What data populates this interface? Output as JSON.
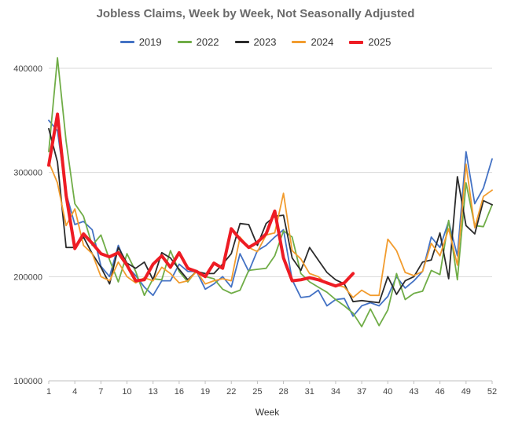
{
  "chart_data": {
    "type": "line",
    "title": "Jobless Claims, Week by Week, Not Seasonally Adjusted",
    "xlabel": "Week",
    "ylabel": "",
    "xlim": [
      1,
      52
    ],
    "ylim": [
      100000,
      400000
    ],
    "yticks": [
      100000,
      200000,
      300000,
      400000
    ],
    "ytick_labels": [
      "100000",
      "200000",
      "300000",
      "400000"
    ],
    "xticks": [
      1,
      4,
      7,
      10,
      13,
      16,
      19,
      22,
      25,
      28,
      31,
      34,
      37,
      40,
      43,
      46,
      49,
      52
    ],
    "xtick_labels": [
      "1",
      "4",
      "7",
      "10",
      "13",
      "16",
      "19",
      "22",
      "25",
      "28",
      "31",
      "34",
      "37",
      "40",
      "43",
      "46",
      "49",
      "52"
    ],
    "grid": "horizontal",
    "legend_position": "top",
    "series": [
      {
        "name": "2019",
        "color": "#4472C4",
        "width": 1.8,
        "x": [
          1,
          2,
          3,
          4,
          5,
          6,
          7,
          8,
          9,
          10,
          11,
          12,
          13,
          14,
          15,
          16,
          17,
          18,
          19,
          20,
          21,
          22,
          23,
          24,
          25,
          26,
          27,
          28,
          29,
          30,
          31,
          32,
          33,
          34,
          35,
          36,
          37,
          38,
          39,
          40,
          41,
          42,
          43,
          44,
          45,
          46,
          47,
          48,
          49,
          50,
          51,
          52
        ],
        "values": [
          350000,
          340000,
          280000,
          250000,
          253000,
          245000,
          210000,
          200000,
          230000,
          210000,
          201000,
          190000,
          182000,
          196000,
          196000,
          212000,
          205000,
          205000,
          188000,
          193000,
          200000,
          190000,
          222000,
          205000,
          225000,
          230000,
          238000,
          245000,
          197000,
          180000,
          181000,
          187000,
          172000,
          178000,
          179000,
          162000,
          172000,
          175000,
          172000,
          181000,
          200000,
          189000,
          196000,
          205000,
          238000,
          228000,
          253000,
          220000,
          320000,
          270000,
          285000,
          313000
        ]
      },
      {
        "name": "2022",
        "color": "#70AD47",
        "width": 1.8,
        "x": [
          1,
          2,
          3,
          4,
          5,
          6,
          7,
          8,
          9,
          10,
          11,
          12,
          13,
          14,
          15,
          16,
          17,
          18,
          19,
          20,
          21,
          22,
          23,
          24,
          25,
          26,
          27,
          28,
          29,
          30,
          31,
          32,
          33,
          34,
          35,
          36,
          37,
          38,
          39,
          40,
          41,
          42,
          43,
          44,
          45,
          46,
          47,
          48,
          49,
          50,
          51,
          52
        ],
        "values": [
          320000,
          410000,
          330000,
          270000,
          258000,
          230000,
          240000,
          216000,
          195000,
          222000,
          205000,
          182000,
          198000,
          197000,
          225000,
          205000,
          195000,
          206000,
          200000,
          198000,
          188000,
          184000,
          187000,
          206000,
          207000,
          208000,
          220000,
          244000,
          238000,
          203000,
          195000,
          190000,
          185000,
          178000,
          172000,
          165000,
          152000,
          169000,
          153000,
          168000,
          203000,
          178000,
          184000,
          186000,
          206000,
          202000,
          254000,
          197000,
          290000,
          249000,
          248000,
          269000
        ]
      },
      {
        "name": "2023",
        "color": "#2b2b2b",
        "width": 1.8,
        "x": [
          1,
          2,
          3,
          4,
          5,
          6,
          7,
          8,
          9,
          10,
          11,
          12,
          13,
          14,
          15,
          16,
          17,
          18,
          19,
          20,
          21,
          22,
          23,
          24,
          25,
          26,
          27,
          28,
          29,
          30,
          31,
          32,
          33,
          34,
          35,
          36,
          37,
          38,
          39,
          40,
          41,
          42,
          43,
          44,
          45,
          46,
          47,
          48,
          49,
          50,
          51,
          52
        ],
        "values": [
          342000,
          310000,
          228000,
          228000,
          238000,
          222000,
          209000,
          193000,
          228000,
          213000,
          208000,
          214000,
          197000,
          223000,
          218000,
          207000,
          197000,
          205000,
          203000,
          203000,
          212000,
          222000,
          251000,
          250000,
          230000,
          251000,
          258000,
          259000,
          218000,
          206000,
          228000,
          216000,
          204000,
          197000,
          193000,
          176000,
          177000,
          176000,
          175000,
          200000,
          183000,
          196000,
          200000,
          214000,
          216000,
          242000,
          198000,
          296000,
          249000,
          241000,
          273000,
          269000
        ]
      },
      {
        "name": "2024",
        "color": "#F29C2E",
        "width": 1.8,
        "x": [
          1,
          2,
          3,
          4,
          5,
          6,
          7,
          8,
          9,
          10,
          11,
          12,
          13,
          14,
          15,
          16,
          17,
          18,
          19,
          20,
          21,
          22,
          23,
          24,
          25,
          26,
          27,
          28,
          29,
          30,
          31,
          32,
          33,
          34,
          35,
          36,
          37,
          38,
          39,
          40,
          41,
          42,
          43,
          44,
          45,
          46,
          47,
          48,
          49,
          50,
          51,
          52
        ],
        "values": [
          310000,
          290000,
          249000,
          265000,
          230000,
          222000,
          200000,
          196000,
          214000,
          200000,
          194000,
          199000,
          196000,
          209000,
          203000,
          194000,
          196000,
          205000,
          193000,
          196000,
          198000,
          196000,
          238000,
          228000,
          224000,
          240000,
          242000,
          280000,
          225000,
          217000,
          203000,
          200000,
          193000,
          192000,
          190000,
          180000,
          187000,
          182000,
          182000,
          236000,
          225000,
          204000,
          201000,
          205000,
          232000,
          220000,
          246000,
          211000,
          308000,
          247000,
          277000,
          283000
        ]
      },
      {
        "name": "2025",
        "color": "#EE1C24",
        "width": 4,
        "x": [
          1,
          2,
          3,
          4,
          5,
          6,
          7,
          8,
          9,
          10,
          11,
          12,
          13,
          14,
          15,
          16,
          17,
          18,
          19,
          20,
          21,
          22,
          23,
          24,
          25,
          26,
          27,
          28,
          29,
          30,
          31,
          32,
          33,
          34,
          35,
          36
        ],
        "values": [
          307000,
          356000,
          278000,
          227000,
          241000,
          232000,
          222000,
          219000,
          223000,
          211000,
          196000,
          197000,
          212000,
          220000,
          209000,
          223000,
          208000,
          205000,
          200000,
          213000,
          208000,
          246000,
          236000,
          228000,
          233000,
          241000,
          263000,
          218000,
          196000,
          197000,
          199000,
          197000,
          194000,
          191000,
          194000,
          203000
        ]
      }
    ]
  }
}
